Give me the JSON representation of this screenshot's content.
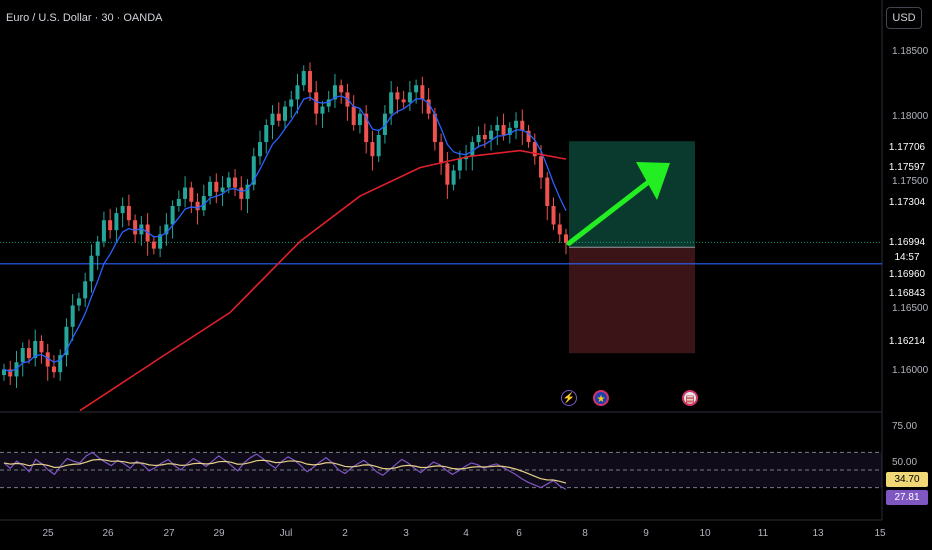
{
  "header": {
    "symbol_title": "Euro / U.S. Dollar · 30 · OANDA",
    "currency_button": "USD"
  },
  "price_axis": {
    "ticks": [
      "1.18500",
      "1.18000",
      "1.17500",
      "1.16500",
      "1.16000"
    ],
    "tags": [
      {
        "value": "1.17706",
        "color": "#089981",
        "role": "take-profit"
      },
      {
        "value": "1.17597",
        "color": "#f23645",
        "role": "ma-200"
      },
      {
        "value": "1.17304",
        "color": "#2962ff",
        "role": "ma-20"
      },
      {
        "value": "1.16994",
        "color": "#089981",
        "role": "last-price"
      },
      {
        "value": "14:57",
        "color": "#089981",
        "role": "bar-countdown"
      },
      {
        "value": "1.16960",
        "color": "#787b86",
        "role": "entry"
      },
      {
        "value": "1.16843",
        "color": "#2962ff",
        "role": "horizontal-line"
      },
      {
        "value": "1.16214",
        "color": "#f23645",
        "role": "stop-loss"
      }
    ]
  },
  "time_axis": {
    "ticks": [
      "25",
      "26",
      "27",
      "29",
      "Jul",
      "2",
      "3",
      "4",
      "6",
      "8",
      "9",
      "10",
      "11",
      "13",
      "15"
    ]
  },
  "rsi": {
    "ticks": [
      "75.00",
      "50.00"
    ],
    "tags": [
      {
        "value": "34.70",
        "color": "#f0d877",
        "text_color": "#000"
      },
      {
        "value": "27.81",
        "color": "#7e57c2",
        "text_color": "#fff"
      }
    ],
    "upper_band": 70,
    "lower_band": 30,
    "rsi_value": 27.81,
    "signal_value": 34.7
  },
  "events": [
    {
      "icon": "dividend-lightning-icon",
      "glyph": "⚡"
    },
    {
      "icon": "eu-flag-icon",
      "glyph": "★"
    },
    {
      "icon": "us-flag-icon",
      "glyph": "▤"
    }
  ],
  "colors": {
    "background": "#000000",
    "candle_up": "#26a69a",
    "candle_down": "#ef5350",
    "ma_fast": "#2962ff",
    "ma_slow": "#e0202c",
    "rsi_line": "#7e57c2",
    "rsi_signal": "#e6d08a",
    "arrow": "#22ee22",
    "horizontal_line": "#2962ff",
    "profit_zone": "#0a3a2e",
    "loss_zone": "#3a1416"
  },
  "chart_data": {
    "type": "candlestick",
    "symbol": "EURUSD",
    "interval": "30",
    "price_range": [
      1.158,
      1.187
    ],
    "trade": {
      "entry": 1.1696,
      "take_profit": 1.17706,
      "stop_loss": 1.16214,
      "last": 1.16994
    },
    "closes": [
      1.161,
      1.1605,
      1.1615,
      1.1625,
      1.1618,
      1.163,
      1.1622,
      1.1612,
      1.1608,
      1.162,
      1.164,
      1.1655,
      1.166,
      1.1672,
      1.169,
      1.17,
      1.1715,
      1.1708,
      1.172,
      1.1725,
      1.1715,
      1.1705,
      1.1712,
      1.17,
      1.1695,
      1.1705,
      1.1712,
      1.1725,
      1.173,
      1.1738,
      1.1728,
      1.1722,
      1.1732,
      1.1742,
      1.1735,
      1.1738,
      1.1745,
      1.1738,
      1.173,
      1.174,
      1.176,
      1.177,
      1.1782,
      1.179,
      1.1785,
      1.1795,
      1.18,
      1.181,
      1.182,
      1.1805,
      1.179,
      1.1795,
      1.18,
      1.181,
      1.1805,
      1.1795,
      1.1782,
      1.179,
      1.177,
      1.176,
      1.1775,
      1.179,
      1.1805,
      1.18,
      1.1798,
      1.1805,
      1.181,
      1.18,
      1.179,
      1.177,
      1.1755,
      1.174,
      1.175,
      1.1758,
      1.176,
      1.177,
      1.1775,
      1.1772,
      1.1778,
      1.1782,
      1.1775,
      1.178,
      1.1785,
      1.1778,
      1.177,
      1.176,
      1.1745,
      1.1725,
      1.1712,
      1.1705,
      1.1699
    ],
    "rsi_series": [
      58,
      52,
      60,
      55,
      48,
      62,
      57,
      50,
      45,
      55,
      63,
      60,
      58,
      66,
      70,
      64,
      59,
      55,
      61,
      57,
      52,
      60,
      56,
      49,
      53,
      58,
      62,
      55,
      50,
      57,
      63,
      59,
      54,
      60,
      66,
      61,
      55,
      49,
      58,
      64,
      68,
      63,
      57,
      52,
      60,
      65,
      61,
      55,
      48,
      53,
      59,
      64,
      58,
      50,
      46,
      52,
      57,
      61,
      55,
      48,
      44,
      50,
      56,
      62,
      58,
      52,
      47,
      53,
      59,
      56,
      50,
      45,
      49,
      54,
      58,
      56,
      52,
      55,
      57,
      53,
      49,
      45,
      40,
      36,
      33,
      30,
      34,
      38,
      32,
      28
    ]
  }
}
